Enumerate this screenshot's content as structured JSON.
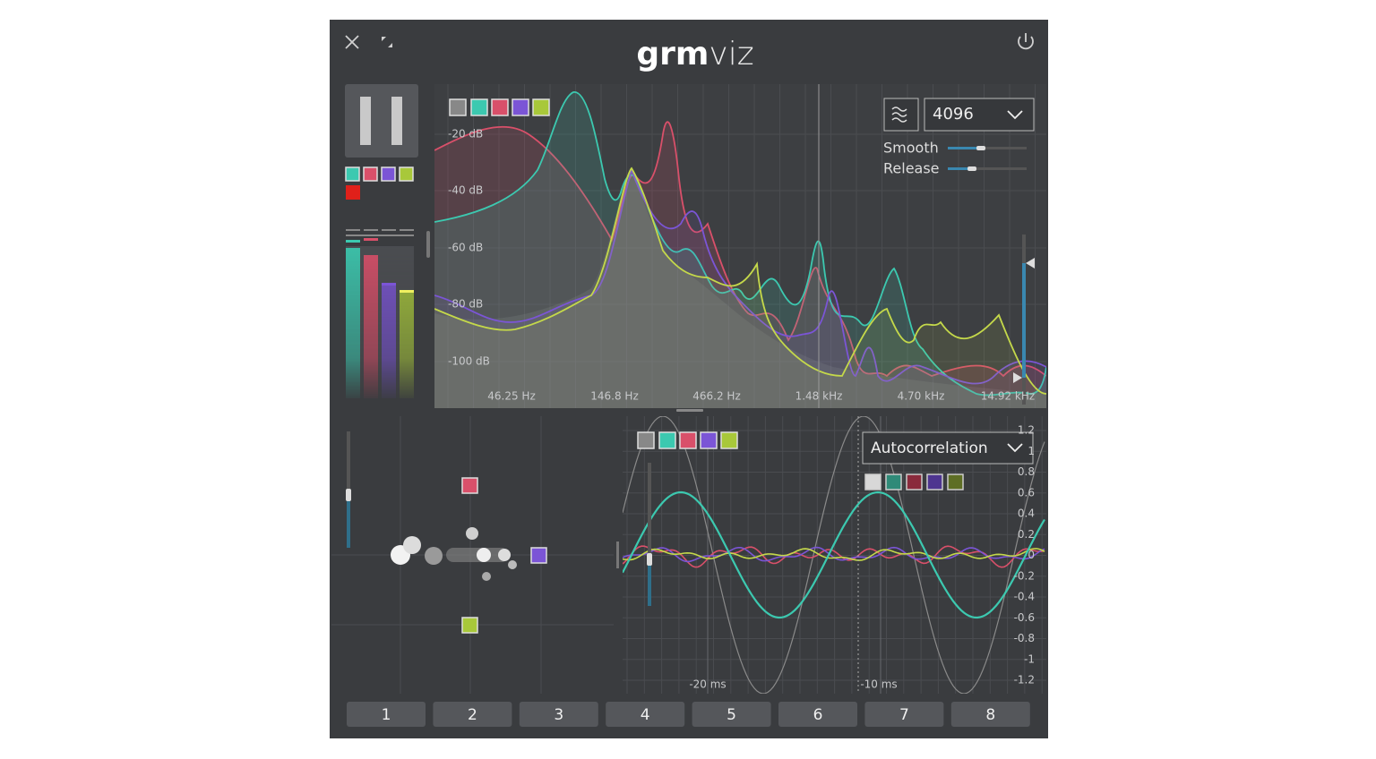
{
  "header": {
    "title_bold": "grm",
    "title_light": "viz"
  },
  "spectrum": {
    "fft_size": "4096",
    "smooth_label": "Smooth",
    "release_label": "Release",
    "db_labels": [
      "-20 dB",
      "-40 dB",
      "-60 dB",
      "-80 dB",
      "-100 dB"
    ],
    "freq_labels": [
      "46.25 Hz",
      "146.8 Hz",
      "466.2 Hz",
      "1.48 kHz",
      "4.70 kHz",
      "14.92 kHz"
    ]
  },
  "scope": {
    "mode": "Autocorrelation",
    "y_labels": [
      "1.2",
      "1",
      "0.8",
      "0.6",
      "0.4",
      "0.2",
      "0",
      "-0.2",
      "-0.4",
      "-0.6",
      "-0.8",
      "-1",
      "-1.2"
    ],
    "time_labels": [
      "-20 ms",
      "-10 ms"
    ]
  },
  "channel_buttons": [
    "1",
    "2",
    "3",
    "4",
    "5",
    "6",
    "7",
    "8"
  ]
}
